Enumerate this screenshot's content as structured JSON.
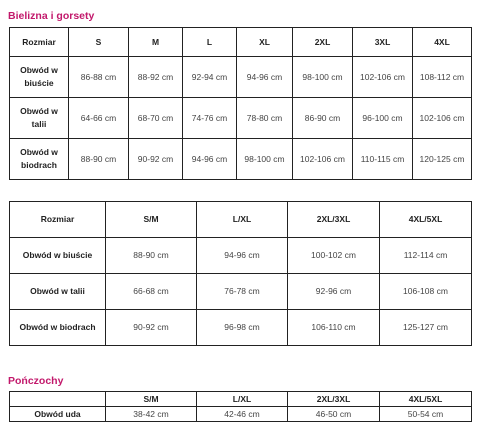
{
  "section1": {
    "title": "Bielizna i gorsety",
    "table1": {
      "header": [
        "Rozmiar",
        "S",
        "M",
        "L",
        "XL",
        "2XL",
        "3XL",
        "4XL"
      ],
      "rows": [
        {
          "label": "Obwód w biuście",
          "cells": [
            "86-88 cm",
            "88-92 cm",
            "92-94 cm",
            "94-96 cm",
            "98-100 cm",
            "102-106 cm",
            "108-112 cm"
          ]
        },
        {
          "label": "Obwód w talii",
          "cells": [
            "64-66 cm",
            "68-70 cm",
            "74-76 cm",
            "78-80 cm",
            "86-90 cm",
            "96-100 cm",
            "102-106 cm"
          ]
        },
        {
          "label": "Obwód w biodrach",
          "cells": [
            "88-90 cm",
            "90-92 cm",
            "94-96 cm",
            "98-100 cm",
            "102-106 cm",
            "110-115 cm",
            "120-125 cm"
          ]
        }
      ]
    },
    "table2": {
      "header": [
        "Rozmiar",
        "S/M",
        "L/XL",
        "2XL/3XL",
        "4XL/5XL"
      ],
      "rows": [
        {
          "label": "Obwód w biuście",
          "cells": [
            "88-90 cm",
            "94-96 cm",
            "100-102 cm",
            "112-114 cm"
          ]
        },
        {
          "label": "Obwód w talii",
          "cells": [
            "66-68 cm",
            "76-78 cm",
            "92-96 cm",
            "106-108 cm"
          ]
        },
        {
          "label": "Obwód w biodrach",
          "cells": [
            "90-92 cm",
            "96-98 cm",
            "106-110 cm",
            "125-127 cm"
          ]
        }
      ]
    }
  },
  "section2": {
    "title": "Pończochy",
    "table3": {
      "header": [
        "",
        "S/M",
        "L/XL",
        "2XL/3XL",
        "4XL/5XL"
      ],
      "rows": [
        {
          "label": "Obwód uda",
          "cells": [
            "38-42 cm",
            "42-46 cm",
            "46-50 cm",
            "50-54 cm"
          ]
        }
      ]
    }
  }
}
